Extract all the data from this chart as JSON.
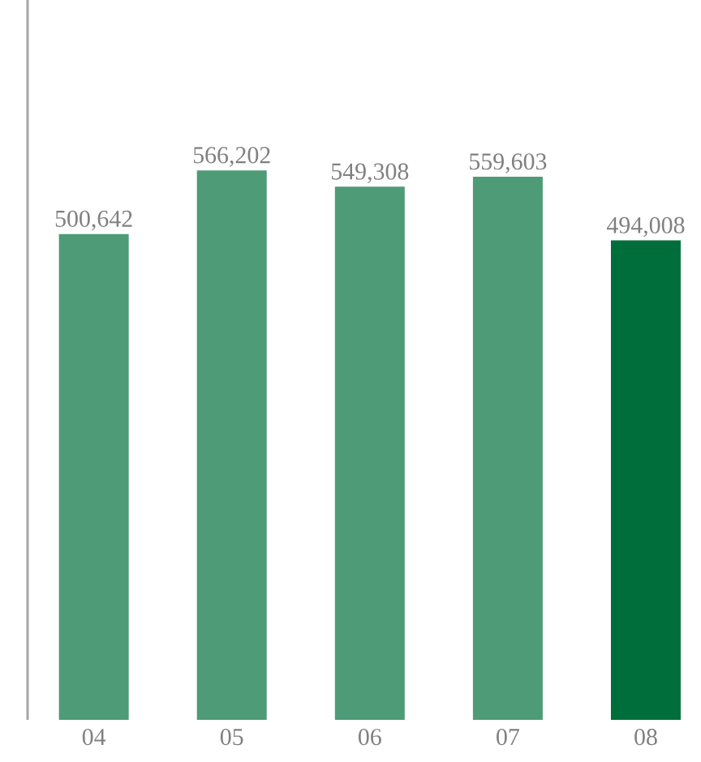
{
  "chart_data": {
    "type": "bar",
    "categories": [
      "04",
      "05",
      "06",
      "07",
      "08"
    ],
    "values": [
      500642,
      566202,
      549308,
      559603,
      494008
    ],
    "colors": [
      "#4e9b77",
      "#4e9b77",
      "#4e9b77",
      "#4e9b77",
      "#006e3b"
    ],
    "value_labels": [
      "500,642",
      "566,202",
      "549,308",
      "559,603",
      "494,008"
    ]
  }
}
